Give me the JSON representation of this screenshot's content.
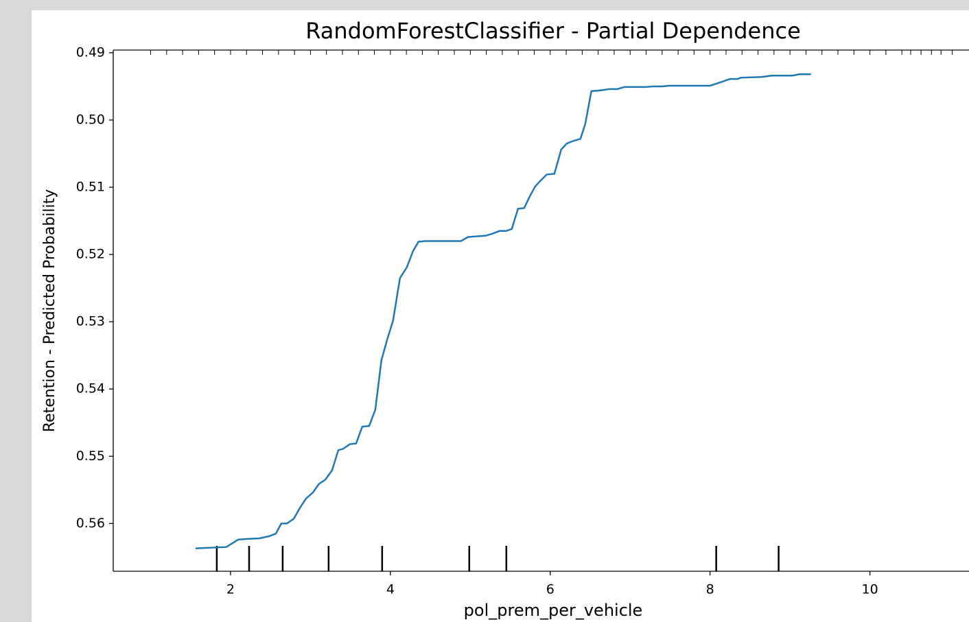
{
  "chart_data": {
    "type": "line",
    "title": "RandomForestClassifier - Partial Dependence",
    "xlabel": "pol_prem_per_vehicle",
    "ylabel": "Retention - Predicted Probability",
    "xlim": [
      0.532,
      11.24
    ],
    "ylim": [
      0.5671,
      0.4896
    ],
    "xticks": [
      2,
      4,
      6,
      8,
      10
    ],
    "yticks": [
      0.49,
      {
        "value": 0.5,
        "label": "0.50"
      },
      0.51,
      0.52,
      0.53,
      0.54,
      0.55,
      0.56
    ],
    "series": [
      {
        "color": "#1f77b4",
        "x": [
          1.562,
          1.948,
          2.094,
          2.206,
          2.361,
          2.481,
          2.567,
          2.635,
          2.704,
          2.79,
          2.867,
          2.944,
          3.03,
          3.107,
          3.185,
          3.27,
          3.348,
          3.408,
          3.494,
          3.571,
          3.648,
          3.734,
          3.811,
          3.888,
          3.966,
          4.034,
          4.12,
          4.206,
          4.283,
          4.352,
          4.438,
          4.884,
          4.97,
          5.193,
          5.279,
          5.365,
          5.451,
          5.519,
          5.597,
          5.674,
          5.742,
          5.811,
          5.88,
          5.957,
          6.052,
          6.137,
          6.206,
          6.292,
          6.378,
          6.438,
          6.515,
          6.627,
          6.738,
          6.841,
          6.927,
          7.185,
          7.288,
          7.399,
          7.485,
          8.0,
          8.129,
          8.249,
          8.343,
          8.386,
          8.644,
          8.773,
          9.03,
          9.116,
          9.262
        ],
        "values": [
          0.5637,
          0.5635,
          0.5624,
          0.5623,
          0.5622,
          0.5619,
          0.5615,
          0.56,
          0.56,
          0.5593,
          0.5577,
          0.5563,
          0.5554,
          0.5541,
          0.5535,
          0.5521,
          0.5491,
          0.5489,
          0.5482,
          0.5481,
          0.5456,
          0.5455,
          0.5431,
          0.5357,
          0.5324,
          0.5298,
          0.5235,
          0.5219,
          0.5195,
          0.5181,
          0.518,
          0.518,
          0.5174,
          0.5172,
          0.5169,
          0.5165,
          0.5165,
          0.5162,
          0.5132,
          0.5131,
          0.5114,
          0.5099,
          0.509,
          0.5081,
          0.508,
          0.5044,
          0.5035,
          0.5031,
          0.5028,
          0.5006,
          0.4957,
          0.4956,
          0.4954,
          0.4954,
          0.4951,
          0.4951,
          0.495,
          0.495,
          0.4949,
          0.4949,
          0.4944,
          0.4939,
          0.4939,
          0.4937,
          0.4936,
          0.4934,
          0.4934,
          0.4932,
          0.4932
        ]
      }
    ],
    "deciles": [
      1.828,
      2.232,
      2.652,
      3.227,
      3.897,
      4.987,
      5.451,
      8.077,
      8.858
    ],
    "rug": [
      1.0,
      1.2,
      1.4,
      1.6,
      1.8,
      2.0,
      2.2,
      2.4,
      2.6,
      2.8,
      3.0,
      3.2,
      3.4,
      3.6,
      3.8,
      4.0,
      4.2,
      4.4,
      4.6,
      4.8,
      5.0,
      5.2,
      5.4,
      5.6,
      5.8,
      6.0,
      6.2,
      6.4,
      6.6,
      6.8,
      7.0,
      7.2,
      7.4,
      7.6,
      7.8,
      8.0,
      8.2,
      8.4,
      8.6,
      8.8,
      9.0,
      9.2,
      9.4,
      9.6,
      9.8,
      10.0,
      10.2,
      10.4,
      10.51,
      10.64,
      10.77,
      10.89,
      11.03
    ]
  }
}
